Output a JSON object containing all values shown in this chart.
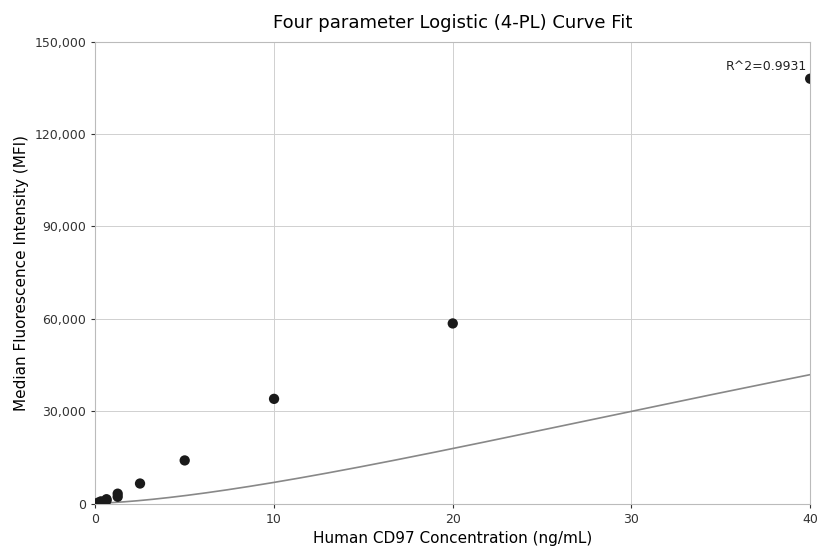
{
  "title": "Four parameter Logistic (4-PL) Curve Fit",
  "xlabel": "Human CD97 Concentration (ng/mL)",
  "ylabel": "Median Fluorescence Intensity (MFI)",
  "r_squared": "R^2=0.9931",
  "scatter_x": [
    0.156,
    0.313,
    0.625,
    0.625,
    1.25,
    1.25,
    2.5,
    5.0,
    10.0,
    20.0,
    40.0
  ],
  "scatter_y": [
    300,
    700,
    1000,
    1400,
    2200,
    3200,
    6500,
    14000,
    34000,
    58500,
    138000
  ],
  "scatter_color": "#1a1a1a",
  "scatter_size": 55,
  "curve_color": "#888888",
  "xlim": [
    0,
    40
  ],
  "ylim": [
    0,
    150000
  ],
  "yticks": [
    0,
    30000,
    60000,
    90000,
    120000,
    150000
  ],
  "xticks": [
    0,
    10,
    20,
    30,
    40
  ],
  "background_color": "#ffffff",
  "grid_color": "#d0d0d0",
  "title_fontsize": 13,
  "label_fontsize": 11
}
